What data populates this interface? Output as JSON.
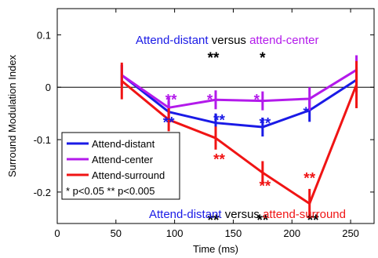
{
  "chart_data": {
    "type": "line",
    "xlabel": "Time (ms)",
    "ylabel": "Surround Modulation Index",
    "xlim": [
      0,
      270
    ],
    "ylim": [
      -0.26,
      0.15
    ],
    "x_ticks": [
      0,
      50,
      100,
      150,
      200,
      250
    ],
    "y_ticks": [
      0.1,
      0,
      -0.1,
      -0.2
    ],
    "y_tick_labels": [
      "0.1",
      "0",
      "-0.1",
      "-0.2"
    ],
    "zero_line": true,
    "legend_position": "bottom-left",
    "series": [
      {
        "name": "Attend-distant",
        "color": "#1a1ae6",
        "x": [
          55,
          95,
          135,
          175,
          215,
          255
        ],
        "y": [
          0.023,
          -0.047,
          -0.068,
          -0.076,
          -0.044,
          0.014
        ],
        "err": [
          0.02,
          0.02,
          0.018,
          0.018,
          0.022,
          0.024
        ]
      },
      {
        "name": "Attend-center",
        "color": "#b31aeb",
        "x": [
          55,
          95,
          135,
          175,
          215,
          255
        ],
        "y": [
          0.023,
          -0.039,
          -0.024,
          -0.026,
          -0.022,
          0.033
        ],
        "err": [
          0.02,
          0.02,
          0.018,
          0.018,
          0.022,
          0.028
        ]
      },
      {
        "name": "Attend-surround",
        "color": "#f01414",
        "x": [
          55,
          95,
          135,
          175,
          215,
          255
        ],
        "y": [
          0.012,
          -0.062,
          -0.097,
          -0.163,
          -0.222,
          0.005
        ],
        "err": [
          0.035,
          0.022,
          0.022,
          0.022,
          0.028,
          0.045
        ]
      }
    ],
    "legend_note": "* p<0.05 ** p<0.005",
    "annotations": {
      "top_title": {
        "left": "Attend-distant",
        "mid": " versus ",
        "right": "attend-center",
        "left_color": "#1a1ae6",
        "right_color": "#b31aeb"
      },
      "bottom_title": {
        "left": "Attend-distant",
        "mid": " versus ",
        "right": "attend-surround",
        "left_color": "#1a1ae6",
        "right_color": "#f01414"
      },
      "stars": [
        {
          "text": "**",
          "x": 95,
          "y": -0.062,
          "color": "#1a1ae6"
        },
        {
          "text": "**",
          "x": 97,
          "y": -0.018,
          "color": "#b31aeb"
        },
        {
          "text": "**",
          "x": 97,
          "y": -0.092,
          "color": "#f01414"
        },
        {
          "text": "**",
          "x": 133,
          "y": 0.062,
          "color": "#000000"
        },
        {
          "text": "*",
          "x": 130,
          "y": -0.018,
          "color": "#b31aeb"
        },
        {
          "text": "**",
          "x": 138,
          "y": -0.057,
          "color": "#1a1ae6"
        },
        {
          "text": "**",
          "x": 138,
          "y": -0.132,
          "color": "#f01414"
        },
        {
          "text": "*",
          "x": 175,
          "y": 0.062,
          "color": "#000000"
        },
        {
          "text": "*",
          "x": 170,
          "y": -0.018,
          "color": "#b31aeb"
        },
        {
          "text": "**",
          "x": 177,
          "y": -0.063,
          "color": "#1a1ae6"
        },
        {
          "text": "**",
          "x": 177,
          "y": -0.183,
          "color": "#f01414"
        },
        {
          "text": "*",
          "x": 212,
          "y": -0.043,
          "color": "#1a1ae6"
        },
        {
          "text": "**",
          "x": 215,
          "y": -0.168,
          "color": "#f01414"
        },
        {
          "text": "**",
          "x": 133,
          "y": -0.248,
          "color": "#000000"
        },
        {
          "text": "**",
          "x": 175,
          "y": -0.248,
          "color": "#000000"
        },
        {
          "text": "**",
          "x": 218,
          "y": -0.248,
          "color": "#000000"
        }
      ]
    }
  }
}
